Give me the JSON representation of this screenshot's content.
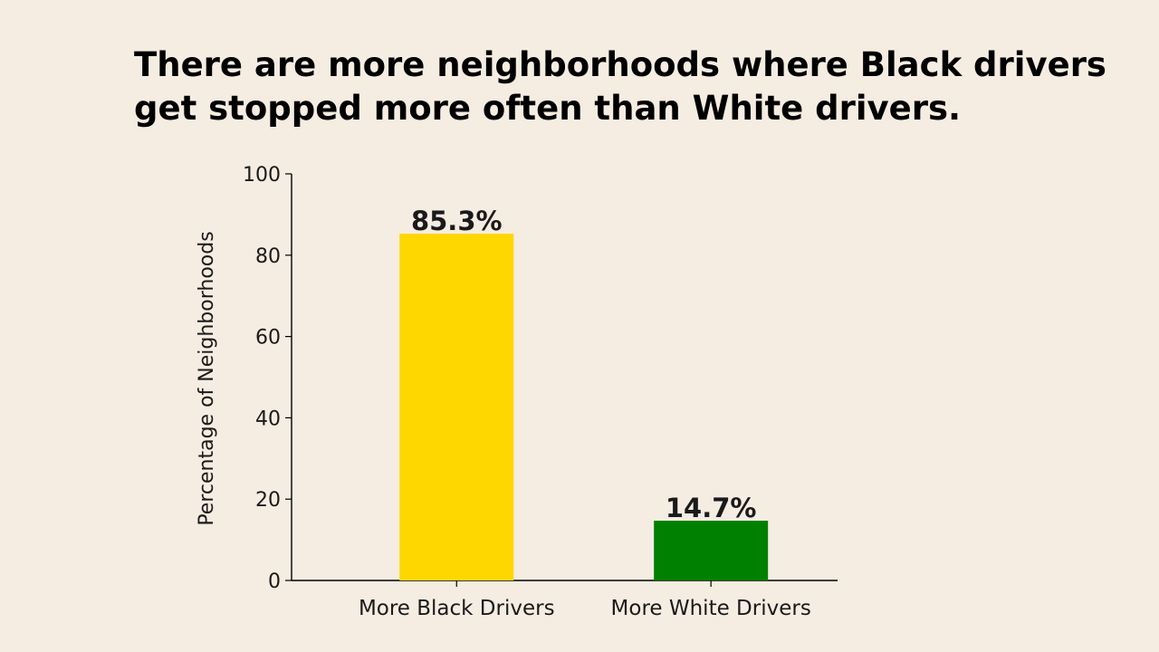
{
  "slide": {
    "title": "There are more neighborhoods where Black drivers get stopped more often than White drivers."
  },
  "chart_data": {
    "type": "bar",
    "categories": [
      "More Black Drivers",
      "More White Drivers"
    ],
    "values": [
      85.3,
      14.7
    ],
    "data_labels": [
      "85.3%",
      "14.7%"
    ],
    "colors": [
      "#FFD700",
      "#008000"
    ],
    "title": "",
    "xlabel": "",
    "ylabel": "Percentage of Neighborhoods",
    "ylim": [
      0,
      100
    ],
    "yticks": [
      0,
      20,
      40,
      60,
      80,
      100
    ],
    "grid": false
  }
}
